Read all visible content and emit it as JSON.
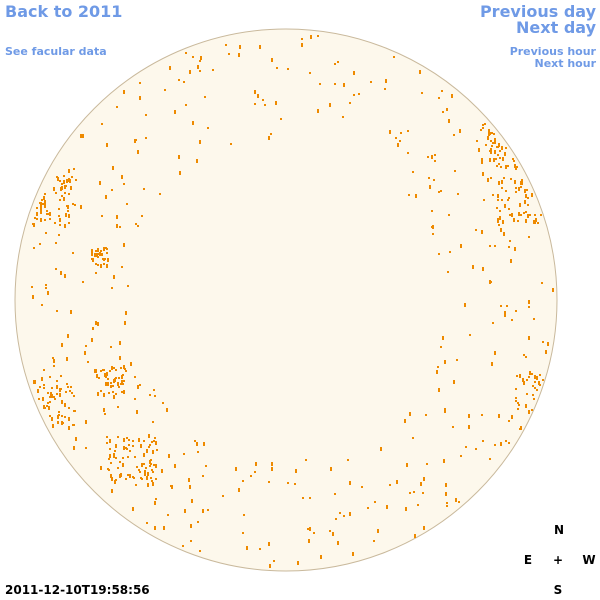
{
  "navigation": {
    "back": "Back to 2011",
    "facular": "See facular data",
    "previous_day": "Previous day",
    "next_day": "Next day",
    "previous_hour": "Previous hour",
    "next_hour": "Next hour"
  },
  "timestamp": "2011-12-10T19:58:56",
  "compass": {
    "north": "N",
    "east": "E",
    "center": "+",
    "west": "W",
    "south": "S"
  }
}
